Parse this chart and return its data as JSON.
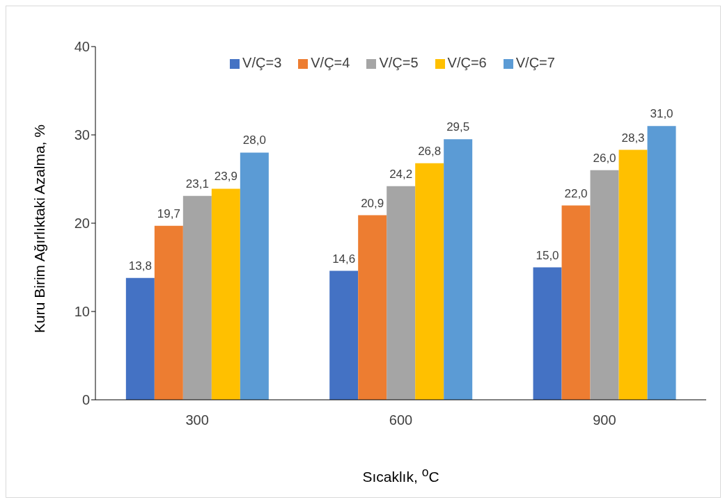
{
  "chart_data": {
    "type": "bar",
    "xlabel": "Sıcaklık, $^{o}$C",
    "ylabel": "Kuru Birim Ağırlıktaki Azalma, %",
    "categories": [
      "300",
      "600",
      "900"
    ],
    "series": [
      {
        "name": "V/Ç=3",
        "color": "#4472c4",
        "values": [
          13.8,
          14.6,
          15.0
        ],
        "value_labels": [
          "13,8",
          "14,6",
          "15,0"
        ]
      },
      {
        "name": "V/Ç=4",
        "color": "#ed7d31",
        "values": [
          19.7,
          20.9,
          22.0
        ],
        "value_labels": [
          "19,7",
          "20,9",
          "22,0"
        ]
      },
      {
        "name": "V/Ç=5",
        "color": "#a5a5a5",
        "values": [
          23.1,
          24.2,
          26.0
        ],
        "value_labels": [
          "23,1",
          "24,2",
          "26,0"
        ]
      },
      {
        "name": "V/Ç=6",
        "color": "#ffc000",
        "values": [
          23.9,
          26.8,
          28.3
        ],
        "value_labels": [
          "23,9",
          "26,8",
          "28,3"
        ]
      },
      {
        "name": "V/Ç=7",
        "color": "#5b9bd5",
        "values": [
          28.0,
          29.5,
          31.0
        ],
        "value_labels": [
          "28,0",
          "29,5",
          "31,0"
        ]
      }
    ],
    "ylim": [
      0,
      40
    ],
    "yticks": [
      0,
      10,
      20,
      30,
      40
    ],
    "grid": false,
    "legend": "top"
  }
}
